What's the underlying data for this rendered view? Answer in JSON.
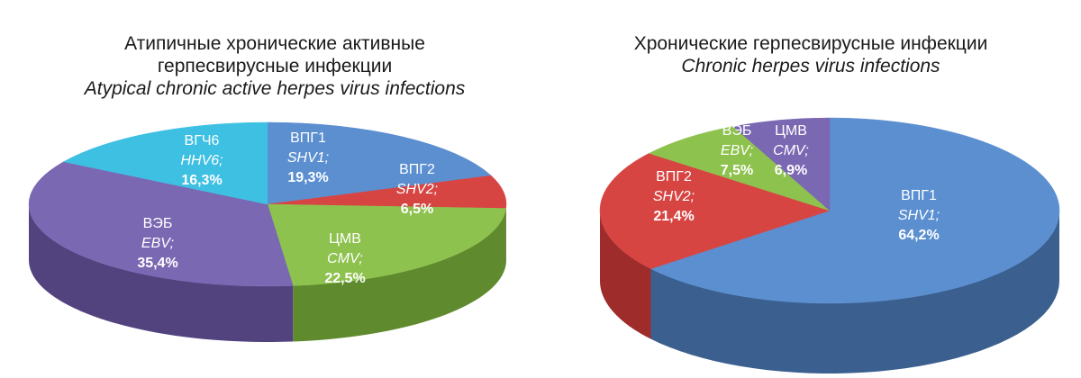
{
  "chart_data": [
    {
      "type": "pie",
      "title_ru": "Атипичные хронические активные герпесвирусные инфекции",
      "title_ru_line1": "Атипичные хронические активные",
      "title_ru_line2": "герпесвирусные инфекции",
      "title_en": "Atypical chronic active herpes virus infections",
      "slices": [
        {
          "label_ru": "ВПГ1",
          "label_en": "SHV1;",
          "value": 19.3,
          "value_text": "19,3%",
          "color": "#5b8fd0",
          "dark": "#3e6aa3"
        },
        {
          "label_ru": "ВПГ2",
          "label_en": "SHV2;",
          "value": 6.5,
          "value_text": "6,5%",
          "color": "#d74543",
          "dark": "#9e2c2a"
        },
        {
          "label_ru": "ЦМВ",
          "label_en": "CMV;",
          "value": 22.5,
          "value_text": "22,5%",
          "color": "#8ec24e",
          "dark": "#5f8a2e"
        },
        {
          "label_ru": "ВЭБ",
          "label_en": "EBV;",
          "value": 35.4,
          "value_text": "35,4%",
          "color": "#7b68b3",
          "dark": "#52437f"
        },
        {
          "label_ru": "ВГЧ6",
          "label_en": "HHV6;",
          "value": 16.3,
          "value_text": "16,3%",
          "color": "#3ec0e3",
          "dark": "#2a8fab"
        }
      ]
    },
    {
      "type": "pie",
      "title_ru": "Хронические герпесвирусные инфекции",
      "title_en": "Chronic herpes virus infections",
      "slices": [
        {
          "label_ru": "ВПГ1",
          "label_en": "SHV1;",
          "value": 64.2,
          "value_text": "64,2%",
          "color": "#5b8fd0",
          "dark": "#3b5f8f"
        },
        {
          "label_ru": "ВПГ2",
          "label_en": "SHV2;",
          "value": 21.4,
          "value_text": "21,4%",
          "color": "#d74543",
          "dark": "#9e2c2a"
        },
        {
          "label_ru": "ВЭБ",
          "label_en": "EBV;",
          "value": 7.5,
          "value_text": "7,5%",
          "color": "#8ec24e",
          "dark": "#5f8a2e"
        },
        {
          "label_ru": "ЦМВ",
          "label_en": "CMV;",
          "value": 6.9,
          "value_text": "6,9%",
          "color": "#7b68b3",
          "dark": "#52437f"
        }
      ]
    }
  ]
}
